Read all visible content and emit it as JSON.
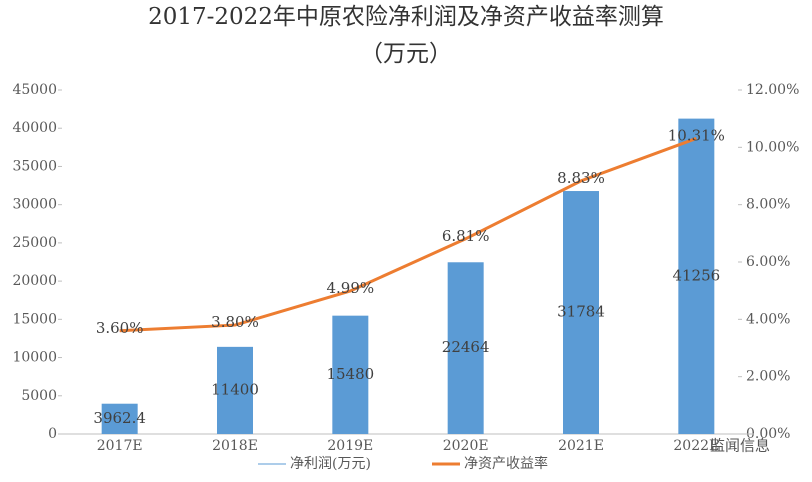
{
  "chart_data": {
    "type": "bar",
    "title": "2017-2022年中原农险净利润及净资产收益率测算",
    "subtitle": "（万元）",
    "categories": [
      "2017E",
      "2018E",
      "2019E",
      "2020E",
      "2021E",
      "2022E"
    ],
    "series": [
      {
        "name": "净利润(万元)",
        "type": "bar",
        "color": "#5b9bd5",
        "values": [
          3962.4,
          11400,
          15480,
          22464,
          31784,
          41256
        ]
      },
      {
        "name": "净资产收益率",
        "type": "line",
        "axis": "y2",
        "color": "#ed7d31",
        "values": [
          3.6,
          3.8,
          4.99,
          6.81,
          8.83,
          10.31
        ],
        "value_labels": [
          "3.60%",
          "3.80%",
          "4.99%",
          "6.81%",
          "8.83%",
          "10.31%"
        ]
      }
    ],
    "ylim": [
      0,
      45000
    ],
    "yticks": [
      0,
      5000,
      10000,
      15000,
      20000,
      25000,
      30000,
      35000,
      40000,
      45000
    ],
    "y2lim": [
      0,
      12
    ],
    "y2ticks": [
      {
        "value": 0,
        "label": "0.00%"
      },
      {
        "value": 2,
        "label": "2.00%"
      },
      {
        "value": 4,
        "label": "4.00%"
      },
      {
        "value": 6,
        "label": "6.00%"
      },
      {
        "value": 8,
        "label": "8.00%"
      },
      {
        "value": 10,
        "label": "10.00%"
      },
      {
        "value": 12,
        "label": "12.00%"
      }
    ],
    "legend": "bottom",
    "watermark": "监闻信息"
  }
}
